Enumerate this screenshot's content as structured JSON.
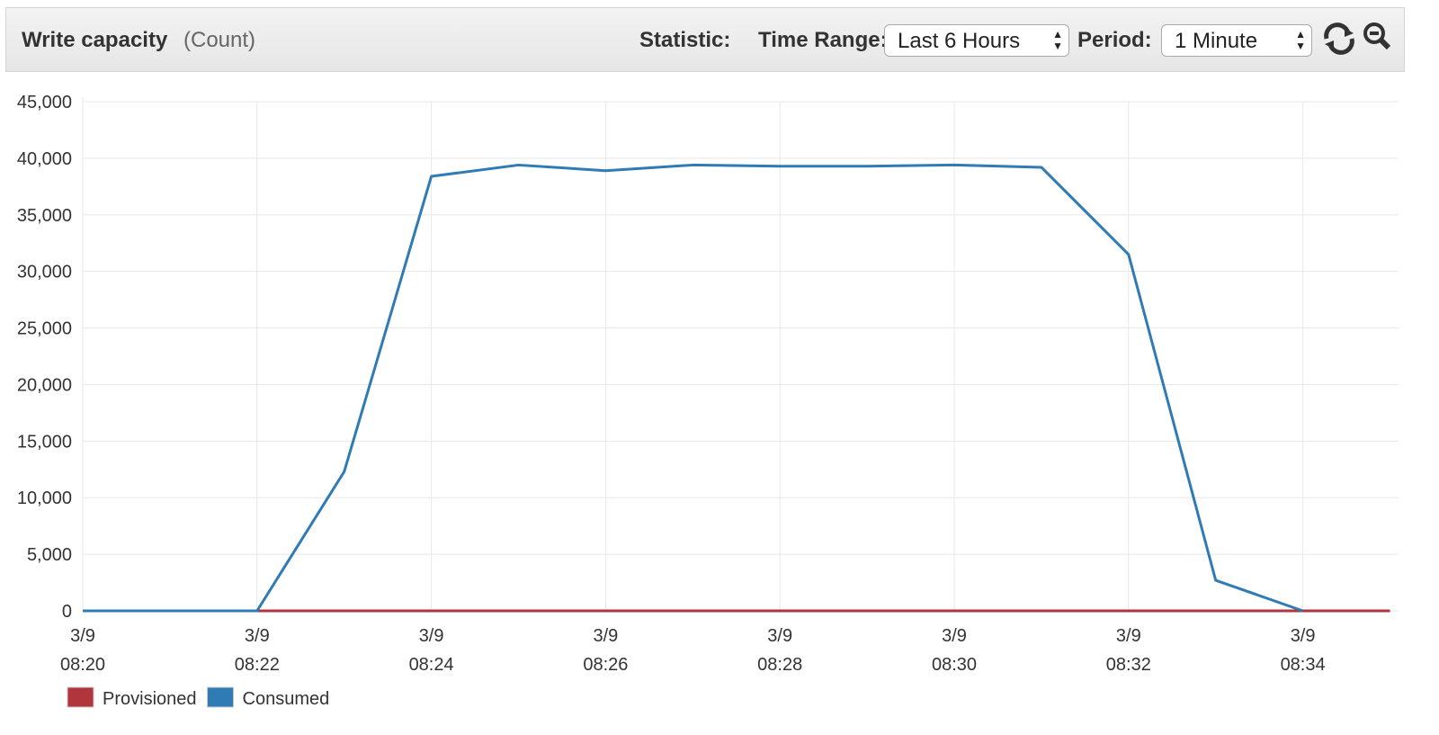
{
  "header": {
    "title": "Write capacity",
    "unit": "(Count)",
    "statistic_label": "Statistic:",
    "time_range_label": "Time Range:",
    "time_range": "Last 6 Hours",
    "period_label": "Period:",
    "period": "1 Minute"
  },
  "chart_data": {
    "type": "line",
    "x": [
      "3/9 08:20",
      "3/9 08:21",
      "3/9 08:22",
      "3/9 08:23",
      "3/9 08:24",
      "3/9 08:25",
      "3/9 08:26",
      "3/9 08:27",
      "3/9 08:28",
      "3/9 08:29",
      "3/9 08:30",
      "3/9 08:31",
      "3/9 08:32",
      "3/9 08:33",
      "3/9 08:34",
      "3/9 08:35"
    ],
    "series": [
      {
        "name": "Provisioned",
        "color": "#b0353c",
        "values": [
          0,
          0,
          0,
          0,
          0,
          0,
          0,
          0,
          0,
          0,
          0,
          0,
          0,
          0,
          0,
          0
        ]
      },
      {
        "name": "Consumed",
        "color": "#2e7bb5",
        "values": [
          0,
          0,
          0,
          12300,
          38400,
          39400,
          38900,
          39400,
          39300,
          39300,
          39400,
          39200,
          31500,
          2700,
          0,
          null
        ]
      }
    ],
    "ylim": [
      0,
      45000
    ],
    "yticks": [
      0,
      {
        "value": 5000,
        "label": "5,000"
      },
      {
        "value": 10000,
        "label": "10,000"
      },
      {
        "value": 15000,
        "label": "15,000"
      },
      {
        "value": 20000,
        "label": "20,000"
      },
      {
        "value": 25000,
        "label": "25,000"
      },
      {
        "value": 30000,
        "label": "30,000"
      },
      {
        "value": 35000,
        "label": "35,000"
      },
      {
        "value": 40000,
        "label": "40,000"
      },
      {
        "value": 45000,
        "label": "45,000"
      }
    ],
    "xticks": [
      {
        "value": "3/9 08:20",
        "label": [
          "3/9",
          "08:20"
        ]
      },
      {
        "value": "3/9 08:22",
        "label": [
          "3/9",
          "08:22"
        ]
      },
      {
        "value": "3/9 08:24",
        "label": [
          "3/9",
          "08:24"
        ]
      },
      {
        "value": "3/9 08:26",
        "label": [
          "3/9",
          "08:26"
        ]
      },
      {
        "value": "3/9 08:28",
        "label": [
          "3/9",
          "08:28"
        ]
      },
      {
        "value": "3/9 08:30",
        "label": [
          "3/9",
          "08:30"
        ]
      },
      {
        "value": "3/9 08:32",
        "label": [
          "3/9",
          "08:32"
        ]
      },
      {
        "value": "3/9 08:34",
        "label": [
          "3/9",
          "08:34"
        ]
      }
    ],
    "grid": true,
    "legend": "bottom-left"
  }
}
